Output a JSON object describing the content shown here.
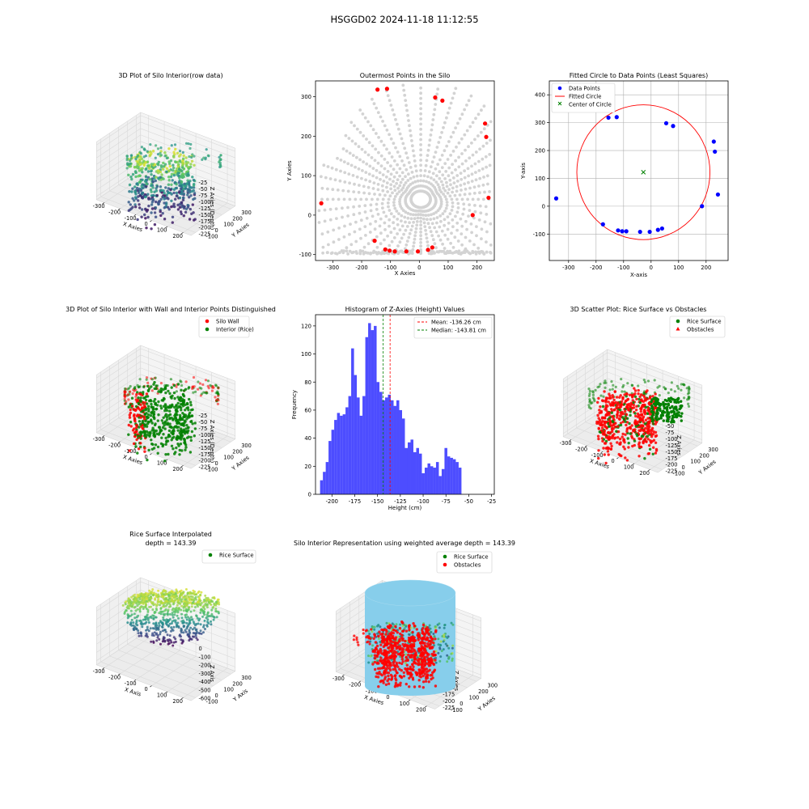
{
  "figure_title": "HSGGD02 2024-11-18 11:12:55",
  "colors": {
    "wall": "#ff0000",
    "interior": "#008000",
    "gray_points": "#d3d3d3",
    "data_points": "#0000ff",
    "hist_bar": "#4d4dff",
    "silo_cylinder": "#87ceeb",
    "mean_line": "#ff0000",
    "median_line": "#008000",
    "pane": "#f2f2f2",
    "grid": "#dddddd"
  },
  "chart_data": [
    {
      "id": "p1",
      "type": "scatter",
      "projection": "3d",
      "title": "3D Plot of Silo Interior(row data)",
      "xlabel": "X Axies",
      "ylabel": "Y Axies",
      "zlabel": "Z Axies (Depth)",
      "colormap": "viridis",
      "xticks": [
        -300,
        -200,
        -100,
        0,
        100,
        200
      ],
      "yticks": [
        -100,
        0,
        100,
        200,
        300
      ],
      "zticks": [
        -225,
        -200,
        -175,
        -150,
        -125,
        -100,
        -75,
        -50,
        -25
      ],
      "xlim": [
        -340,
        240
      ],
      "ylim": [
        -110,
        320
      ],
      "zlim": [
        -230,
        -20
      ],
      "grid": true
    },
    {
      "id": "p2",
      "type": "scatter",
      "title": "Outermost Points in the Silo",
      "xlabel": "X Axies",
      "ylabel": "Y Axies",
      "xlim": [
        -360,
        260
      ],
      "ylim": [
        -115,
        340
      ],
      "xticks": [
        -300,
        -200,
        -100,
        0,
        100,
        200
      ],
      "yticks": [
        -100,
        0,
        100,
        200,
        300
      ],
      "grid": false,
      "outermost_points": [
        [
          -340,
          30
        ],
        [
          -155,
          -65
        ],
        [
          -145,
          318
        ],
        [
          -112,
          320
        ],
        [
          -118,
          -87
        ],
        [
          -103,
          -90
        ],
        [
          -85,
          -92
        ],
        [
          -45,
          -92
        ],
        [
          -5,
          -92
        ],
        [
          30,
          -88
        ],
        [
          45,
          -82
        ],
        [
          55,
          298
        ],
        [
          80,
          290
        ],
        [
          185,
          0
        ],
        [
          228,
          232
        ],
        [
          232,
          198
        ],
        [
          240,
          44
        ]
      ]
    },
    {
      "id": "p3",
      "type": "scatter",
      "title": "Fitted Circle to Data Points (Least Squares)",
      "xlabel": "X-axis",
      "ylabel": "Y-axis",
      "xlim": [
        -370,
        280
      ],
      "ylim": [
        -195,
        450
      ],
      "xticks": [
        -300,
        -200,
        -100,
        0,
        100,
        200
      ],
      "yticks": [
        -100,
        0,
        100,
        200,
        300,
        400
      ],
      "grid": true,
      "legend": [
        "Data Points",
        "Fitted Circle",
        "Center of Circle"
      ],
      "legend_position": "upper-left",
      "data_points": [
        [
          -345,
          28
        ],
        [
          -175,
          -65
        ],
        [
          -155,
          318
        ],
        [
          -125,
          320
        ],
        [
          -120,
          -87
        ],
        [
          -105,
          -90
        ],
        [
          -90,
          -90
        ],
        [
          -40,
          -92
        ],
        [
          -5,
          -92
        ],
        [
          25,
          -85
        ],
        [
          40,
          -80
        ],
        [
          55,
          298
        ],
        [
          80,
          288
        ],
        [
          185,
          0
        ],
        [
          228,
          232
        ],
        [
          232,
          196
        ],
        [
          243,
          42
        ]
      ],
      "circle": {
        "cx": -28,
        "cy": 122,
        "r": 242
      }
    },
    {
      "id": "p4",
      "type": "scatter",
      "projection": "3d",
      "title": "3D Plot of Silo Interior with Wall and Interior Points Distinguished",
      "xlabel": "X Axies",
      "ylabel": "Y Axies",
      "zlabel": "Z Axies (Depth)",
      "legend": [
        "Silo Wall",
        "Interior (Rice)"
      ],
      "legend_position": "upper-right",
      "xticks": [
        -300,
        -200,
        -100,
        0,
        100,
        200
      ],
      "yticks": [
        -100,
        0,
        100,
        200,
        300
      ],
      "zticks": [
        -225,
        -200,
        -175,
        -150,
        -125,
        -100,
        -75,
        -50,
        -25
      ],
      "grid": true
    },
    {
      "id": "p5",
      "type": "bar",
      "subtype": "histogram",
      "title": "Histogram of Z-Axies (Height) Values",
      "xlabel": "Height (cm)",
      "ylabel": "Frequency",
      "xlim": [
        -218,
        -22
      ],
      "ylim": [
        0,
        128
      ],
      "xticks": [
        -200,
        -175,
        -150,
        -125,
        -100,
        -75,
        -50,
        -25
      ],
      "yticks": [
        0,
        20,
        40,
        60,
        80,
        100,
        120
      ],
      "bin_start": -213,
      "bin_width": 3.1,
      "values": [
        10,
        16,
        23,
        38,
        46,
        53,
        58,
        56,
        57,
        62,
        70,
        104,
        85,
        69,
        56,
        70,
        112,
        122,
        117,
        120,
        80,
        73,
        67,
        69,
        71,
        67,
        63,
        67,
        60,
        54,
        33,
        37,
        39,
        30,
        33,
        29,
        15,
        19,
        22,
        20,
        19,
        23,
        13,
        18,
        33,
        27,
        26,
        25,
        23,
        19
      ],
      "mean": -136.26,
      "median": -143.81,
      "legend": [
        "Mean: -136.26 cm",
        "Median: -143.81 cm"
      ],
      "legend_position": "upper-right"
    },
    {
      "id": "p6",
      "type": "scatter",
      "projection": "3d",
      "title": "3D Scatter Plot: Rice Surface vs Obstacles",
      "xlabel": "X Axies",
      "ylabel": "Y Axies",
      "zlabel": "Z Axies",
      "legend": [
        "Rice Surface",
        "Obstacles"
      ],
      "legend_position": "upper-right",
      "xticks": [
        -300,
        -200,
        -100,
        0,
        100,
        200
      ],
      "yticks": [
        -100,
        0,
        100,
        200,
        300
      ],
      "zticks": [
        -225,
        -200,
        -175,
        -150,
        -125,
        -100,
        -75,
        -50,
        -25
      ],
      "grid": true
    },
    {
      "id": "p7",
      "type": "scatter",
      "projection": "3d",
      "title_lines": [
        "Rice Surface Interpolated",
        "depth = 143.39"
      ],
      "xlabel": "X Axis",
      "ylabel": "Y Axis",
      "zlabel": "Z Axis",
      "legend": [
        "Rice Surface"
      ],
      "legend_position": "upper-right",
      "xticks": [
        -300,
        -200,
        -100,
        0,
        100,
        200
      ],
      "yticks": [
        -100,
        0,
        100,
        200,
        300
      ],
      "zticks": [
        -600,
        -500,
        -400,
        -300,
        -200,
        -100,
        0
      ],
      "grid": true
    },
    {
      "id": "p8",
      "type": "scatter",
      "projection": "3d",
      "title": "Silo Interior Representation using weighted average depth = 143.39",
      "xlabel": "X Axies",
      "ylabel": "Y Axies",
      "zlabel": "Z Axies",
      "legend": [
        "Rice Surface",
        "Obstacles"
      ],
      "legend_position": "upper-right",
      "xticks": [
        -300,
        -200,
        -100,
        0,
        100,
        200
      ],
      "yticks": [
        -100,
        0,
        100,
        200,
        300
      ],
      "zticks": [
        -225,
        -200,
        -175,
        -150,
        -125,
        -100,
        -75,
        -50,
        -25
      ],
      "grid": true
    }
  ]
}
